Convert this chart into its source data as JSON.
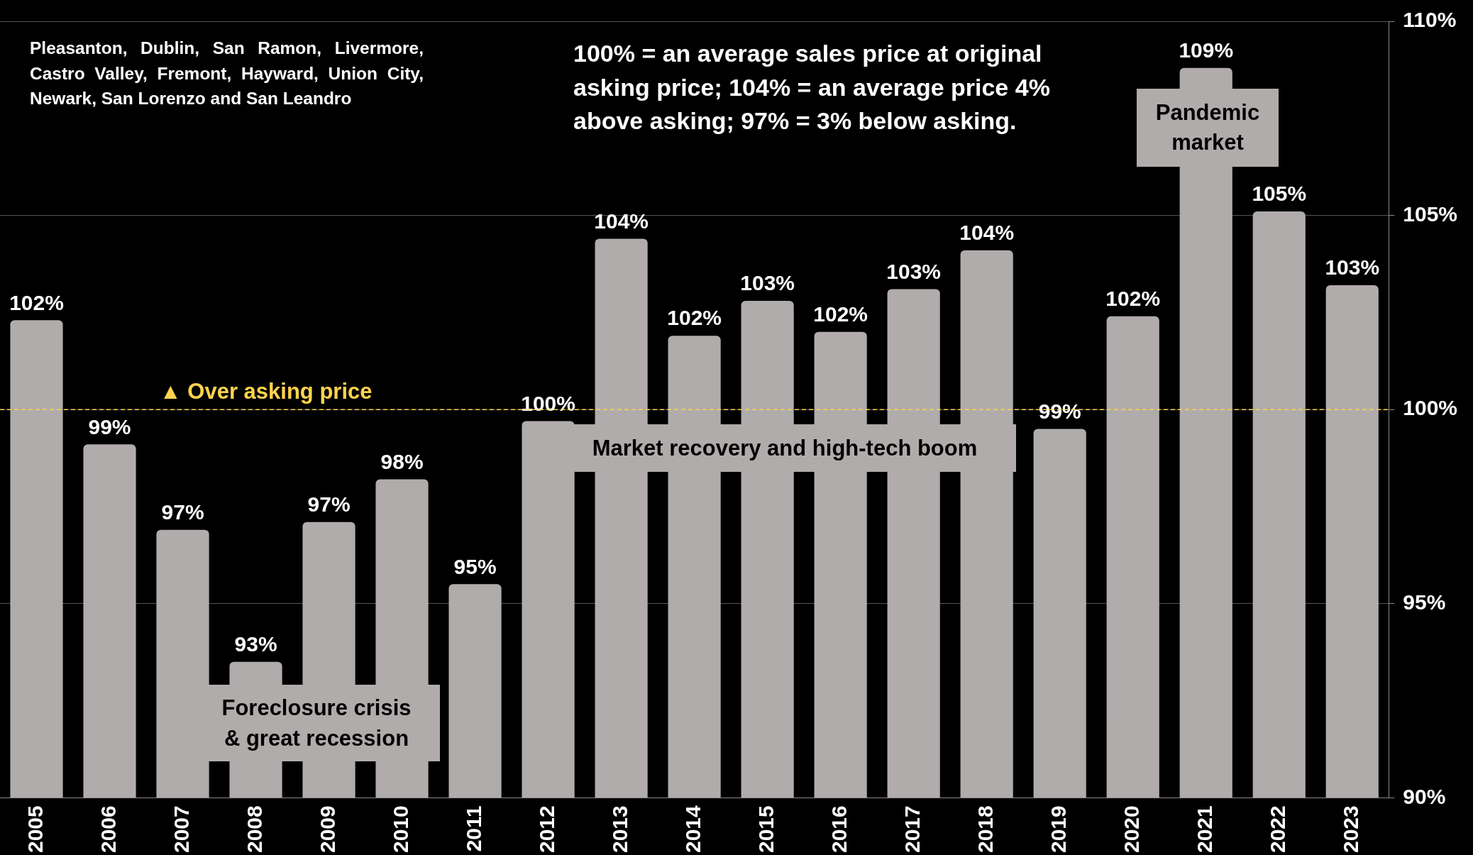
{
  "chart_data": {
    "type": "bar",
    "categories": [
      "2005",
      "2006",
      "2007",
      "2008",
      "2009",
      "2010",
      "2011",
      "2012",
      "2013",
      "2014",
      "2015",
      "2016",
      "2017",
      "2018",
      "2019",
      "2020",
      "2021",
      "2022",
      "2023"
    ],
    "values": [
      102.3,
      99.1,
      96.9,
      93.5,
      97.1,
      98.2,
      95.5,
      99.7,
      104.4,
      101.9,
      102.8,
      102.0,
      103.1,
      104.1,
      99.5,
      102.4,
      108.8,
      105.1,
      103.2
    ],
    "value_labels": [
      "102%",
      "99%",
      "97%",
      "93%",
      "97%",
      "98%",
      "95%",
      "100%",
      "104%",
      "102%",
      "103%",
      "102%",
      "103%",
      "104%",
      "99%",
      "102%",
      "109%",
      "105%",
      "103%"
    ],
    "color": "#b0acab",
    "ylim": [
      90,
      110
    ],
    "yticks": [
      {
        "value": 90,
        "label": "90%"
      },
      {
        "value": 95,
        "label": "95%"
      },
      {
        "value": 100,
        "label": "100%"
      },
      {
        "value": 105,
        "label": "105%"
      },
      {
        "value": 110,
        "label": "110%"
      }
    ],
    "grid": "y",
    "legend": false,
    "ref_lines": [
      {
        "axis": "y",
        "value": 100,
        "label": "▲ Over asking price",
        "color": "#ffd34d",
        "line_style": "dashed"
      }
    ],
    "annotations": [
      "Pleasanton, Dublin, San Ramon, Livermore, Castro Valley, Fremont, Hayward, Union City, Newark, San Lorenzo and San Leandro",
      "100% = an average sales price at original asking price; 104% = an average price 4% above asking; 97% = 3% below asking.",
      "Pandemic market",
      "Market recovery and high-tech boom",
      "Foreclosure crisis & great recession"
    ]
  }
}
